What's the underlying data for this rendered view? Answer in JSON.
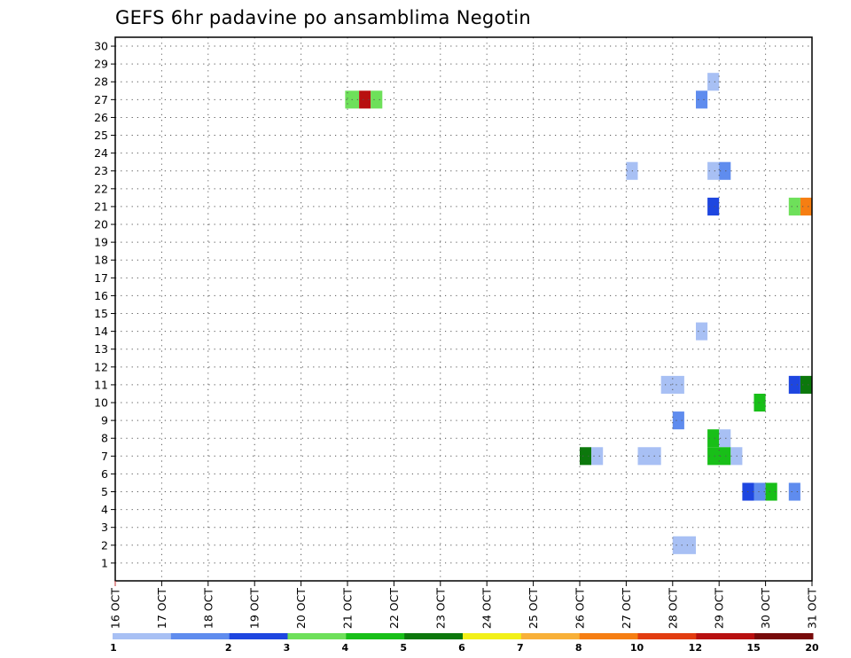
{
  "chart_data": {
    "type": "heatmap",
    "title": "GEFS 6hr padavine po ansamblima Negotin",
    "xlabel": "",
    "ylabel": "",
    "x_categories": [
      "16 OCT",
      "17 OCT",
      "18 OCT",
      "19 OCT",
      "20 OCT",
      "21 OCT",
      "22 OCT",
      "23 OCT",
      "24 OCT",
      "25 OCT",
      "26 OCT",
      "27 OCT",
      "28 OCT",
      "29 OCT",
      "30 OCT",
      "31 OCT"
    ],
    "x_range_days": [
      16,
      31
    ],
    "y_categories": [
      1,
      2,
      3,
      4,
      5,
      6,
      7,
      8,
      9,
      10,
      11,
      12,
      13,
      14,
      15,
      16,
      17,
      18,
      19,
      20,
      21,
      22,
      23,
      24,
      25,
      26,
      27,
      28,
      29,
      30
    ],
    "ylim": [
      0,
      30.5
    ],
    "grid": true,
    "legend_position": "bottom",
    "color_levels": [
      {
        "label": "1",
        "color": "#a8c0f4"
      },
      {
        "label": "2",
        "color": "#5f8cee"
      },
      {
        "label": "3",
        "color": "#1e46e0"
      },
      {
        "label": "4",
        "color": "#6ee05a"
      },
      {
        "label": "5",
        "color": "#18bf18"
      },
      {
        "label": "6",
        "color": "#0c780c"
      },
      {
        "label": "7",
        "color": "#f2f018"
      },
      {
        "label": "8",
        "color": "#f8b038"
      },
      {
        "label": "10",
        "color": "#f67e12"
      },
      {
        "label": "12",
        "color": "#e23c10"
      },
      {
        "label": "15",
        "color": "#b81010"
      },
      {
        "label": "20",
        "color": "#780a0a"
      }
    ],
    "cells": [
      {
        "member": 27,
        "day_start": 20.95,
        "day_end": 21.25,
        "level": 3
      },
      {
        "member": 27,
        "day_start": 21.25,
        "day_end": 21.5,
        "level": 10
      },
      {
        "member": 27,
        "day_start": 21.5,
        "day_end": 21.75,
        "level": 3
      },
      {
        "member": 28,
        "day_start": 28.75,
        "day_end": 29.0,
        "level": 0
      },
      {
        "member": 27,
        "day_start": 28.5,
        "day_end": 28.75,
        "level": 1
      },
      {
        "member": 23,
        "day_start": 27.0,
        "day_end": 27.25,
        "level": 0
      },
      {
        "member": 23,
        "day_start": 28.75,
        "day_end": 29.0,
        "level": 0
      },
      {
        "member": 23,
        "day_start": 29.0,
        "day_end": 29.25,
        "level": 1
      },
      {
        "member": 21,
        "day_start": 28.75,
        "day_end": 29.0,
        "level": 2
      },
      {
        "member": 21,
        "day_start": 30.5,
        "day_end": 30.75,
        "level": 3
      },
      {
        "member": 21,
        "day_start": 30.75,
        "day_end": 31.0,
        "level": 8
      },
      {
        "member": 14,
        "day_start": 28.5,
        "day_end": 28.75,
        "level": 0
      },
      {
        "member": 11,
        "day_start": 27.75,
        "day_end": 28.25,
        "level": 0
      },
      {
        "member": 11,
        "day_start": 30.5,
        "day_end": 30.75,
        "level": 2
      },
      {
        "member": 11,
        "day_start": 30.75,
        "day_end": 31.0,
        "level": 5
      },
      {
        "member": 10,
        "day_start": 29.75,
        "day_end": 30.0,
        "level": 4
      },
      {
        "member": 9,
        "day_start": 28.0,
        "day_end": 28.25,
        "level": 1
      },
      {
        "member": 8,
        "day_start": 28.75,
        "day_end": 29.0,
        "level": 4
      },
      {
        "member": 8,
        "day_start": 29.0,
        "day_end": 29.25,
        "level": 0
      },
      {
        "member": 7,
        "day_start": 26.0,
        "day_end": 26.25,
        "level": 5
      },
      {
        "member": 7,
        "day_start": 26.25,
        "day_end": 26.5,
        "level": 0
      },
      {
        "member": 7,
        "day_start": 27.25,
        "day_end": 27.75,
        "level": 0
      },
      {
        "member": 7,
        "day_start": 28.75,
        "day_end": 29.25,
        "level": 4
      },
      {
        "member": 7,
        "day_start": 29.25,
        "day_end": 29.5,
        "level": 0
      },
      {
        "member": 5,
        "day_start": 29.5,
        "day_end": 29.75,
        "level": 2
      },
      {
        "member": 5,
        "day_start": 29.75,
        "day_end": 30.0,
        "level": 1
      },
      {
        "member": 5,
        "day_start": 30.0,
        "day_end": 30.25,
        "level": 4
      },
      {
        "member": 5,
        "day_start": 30.5,
        "day_end": 30.75,
        "level": 1
      },
      {
        "member": 2,
        "day_start": 28.0,
        "day_end": 28.5,
        "level": 0
      }
    ]
  }
}
